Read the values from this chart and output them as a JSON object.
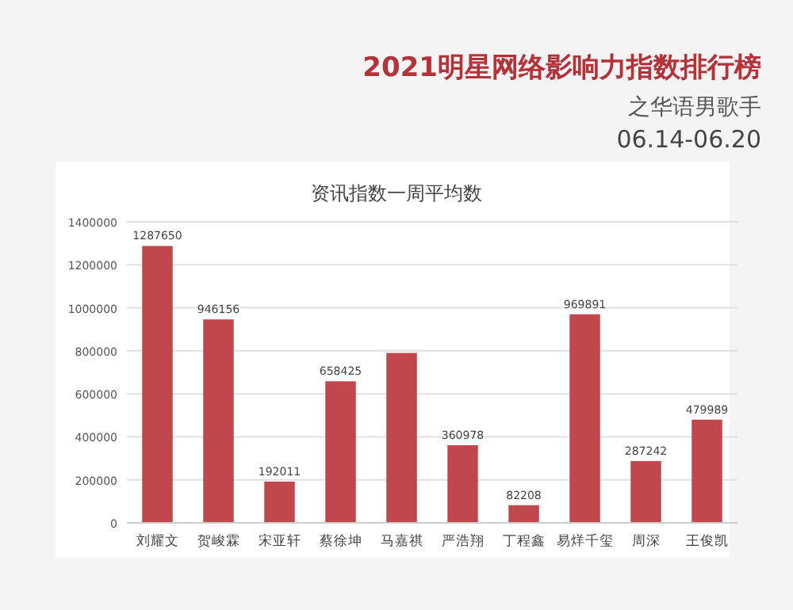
{
  "chart_data": {
    "type": "bar",
    "title": "2021明星网络影响力指数排行榜",
    "subtitle": "之华语男歌手",
    "annotations": [
      "06.14-06.20",
      "资讯指数一周平均数"
    ],
    "categories": [
      "刘耀文",
      "贺峻霖",
      "宋亚轩",
      "蔡徐坤",
      "马嘉祺",
      "严浩翔",
      "丁程鑫",
      "易烊千玺",
      "周深",
      "王俊凯"
    ],
    "values": [
      1287650,
      946156,
      192011,
      658425,
      790000,
      360978,
      82208,
      969891,
      287242,
      479989
    ],
    "value_labels": [
      "1287650",
      "946156",
      "192011",
      "658425",
      null,
      "360978",
      "82208",
      "969891",
      "287242",
      "479989"
    ],
    "color": "#c0474b",
    "ylim": [
      0,
      1400000
    ],
    "yticks": [
      0,
      200000,
      400000,
      600000,
      800000,
      1000000,
      1200000,
      1400000
    ],
    "grid": "y"
  }
}
